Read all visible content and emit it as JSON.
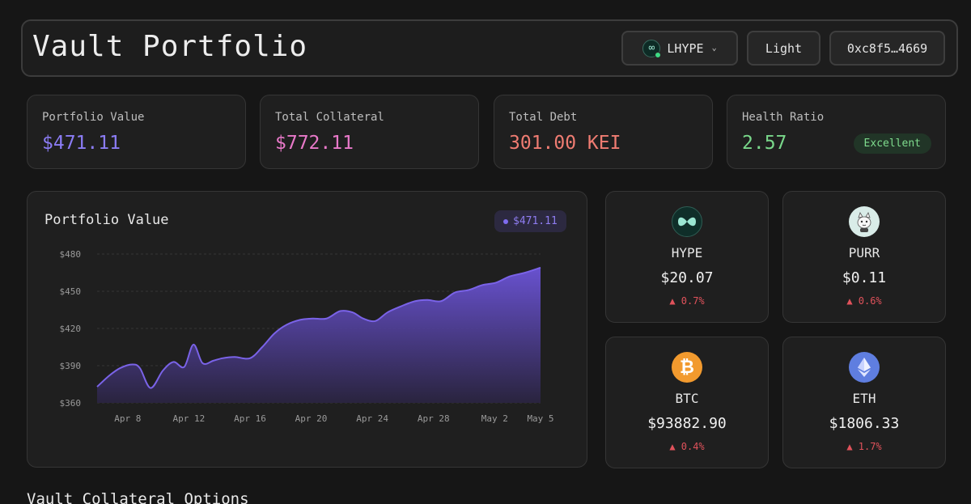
{
  "header": {
    "title": "Vault Portfolio",
    "network": {
      "label": "LHYPE",
      "icon": "infinity-icon"
    },
    "theme_label": "Light",
    "wallet_label": "0xc8f5…4669"
  },
  "stats": [
    {
      "label": "Portfolio Value",
      "value": "$471.11",
      "color": "#8b7cf4"
    },
    {
      "label": "Total Collateral",
      "value": "$772.11",
      "color": "#e879c9"
    },
    {
      "label": "Total Debt",
      "value": "301.00 KEI",
      "color": "#ef7c72"
    },
    {
      "label": "Health Ratio",
      "value": "2.57",
      "color": "#79d78a",
      "badge": "Excellent"
    }
  ],
  "chart": {
    "title": "Portfolio Value",
    "current_label": "$471.11"
  },
  "chart_data": {
    "type": "area",
    "title": "Portfolio Value",
    "xlabel": "",
    "ylabel": "",
    "ylim": [
      360,
      480
    ],
    "y_ticks": [
      360,
      390,
      420,
      450,
      480
    ],
    "y_tick_labels": [
      "$360",
      "$390",
      "$420",
      "$450",
      "$480"
    ],
    "x_tick_labels": [
      "Apr 8",
      "Apr 12",
      "Apr 16",
      "Apr 20",
      "Apr 24",
      "Apr 28",
      "May 2",
      "May 5"
    ],
    "x_tick_days": [
      8,
      12,
      16,
      20,
      24,
      28,
      32,
      35
    ],
    "x_range": [
      6,
      35
    ],
    "grid": true,
    "line_color": "#7a63e8",
    "series": [
      {
        "x": [
          6,
          6.8,
          7.5,
          8.3,
          8.8,
          9.5,
          10.3,
          11.0,
          11.7,
          12.3,
          12.9,
          13.6,
          14.2,
          15.0,
          16.0,
          16.8,
          17.6,
          18.4,
          19.3,
          20.1,
          21.0,
          21.9,
          22.7,
          23.4,
          24.2,
          25.0,
          25.9,
          26.8,
          27.6,
          28.5,
          29.4,
          30.3,
          31.2,
          32.1,
          33.0,
          34.0,
          35.0
        ],
        "y": [
          373,
          382,
          388,
          391,
          388,
          372,
          386,
          393,
          389,
          407,
          392,
          394,
          396,
          397,
          396,
          405,
          416,
          423,
          427,
          428,
          428,
          434,
          433,
          428,
          426,
          433,
          438,
          442,
          443,
          442,
          449,
          451,
          455,
          457,
          462,
          465,
          469
        ]
      }
    ]
  },
  "tokens": [
    {
      "symbol": "HYPE",
      "price": "$20.07",
      "change": "▲ 0.7%",
      "icon": "hype-icon"
    },
    {
      "symbol": "PURR",
      "price": "$0.11",
      "change": "▲ 0.6%",
      "icon": "purr-cat-icon"
    },
    {
      "symbol": "BTC",
      "price": "$93882.90",
      "change": "▲ 0.4%",
      "icon": "bitcoin-icon"
    },
    {
      "symbol": "ETH",
      "price": "$1806.33",
      "change": "▲ 1.7%",
      "icon": "ethereum-icon"
    }
  ],
  "section": {
    "title": "Vault Collateral Options"
  }
}
